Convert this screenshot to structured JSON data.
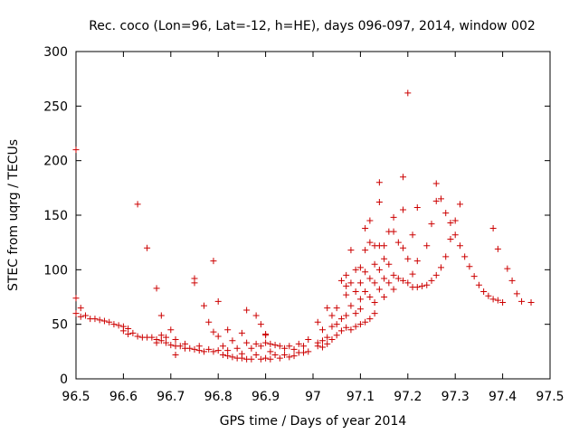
{
  "chart_data": {
    "type": "scatter",
    "title": "Rec. coco (Lon=96, Lat=-12, h=HE), days 096-097, 2014, window 002",
    "xlabel": "GPS time / Days of year 2014",
    "ylabel": "STEC from uqrg / TECUs",
    "xlim": [
      96.5,
      97.5
    ],
    "ylim": [
      0,
      300
    ],
    "xticks": [
      96.5,
      96.6,
      96.7,
      96.8,
      96.9,
      97,
      97.1,
      97.2,
      97.3,
      97.4,
      97.5
    ],
    "yticks": [
      0,
      50,
      100,
      150,
      200,
      250,
      300
    ],
    "xtick_labels": [
      "96.5",
      "96.6",
      "96.7",
      "96.8",
      "96.9",
      "97",
      "97.1",
      "97.2",
      "97.3",
      "97.4",
      "97.5"
    ],
    "ytick_labels": [
      "0",
      "50",
      "100",
      "150",
      "200",
      "250",
      "300"
    ],
    "grid": false,
    "marker": "+",
    "series": [
      {
        "color": "#cc0000",
        "points": [
          [
            96.5,
            210
          ],
          [
            96.5,
            74
          ],
          [
            96.5,
            60
          ],
          [
            96.51,
            65
          ],
          [
            96.51,
            57
          ],
          [
            96.52,
            58
          ],
          [
            96.53,
            55
          ],
          [
            96.54,
            55
          ],
          [
            96.55,
            54
          ],
          [
            96.56,
            53
          ],
          [
            96.57,
            52
          ],
          [
            96.58,
            50
          ],
          [
            96.59,
            49
          ],
          [
            96.6,
            48
          ],
          [
            96.6,
            44
          ],
          [
            96.61,
            46
          ],
          [
            96.61,
            41
          ],
          [
            96.62,
            42
          ],
          [
            96.63,
            160
          ],
          [
            96.63,
            39
          ],
          [
            96.64,
            38
          ],
          [
            96.65,
            120
          ],
          [
            96.65,
            38
          ],
          [
            96.66,
            38
          ],
          [
            96.67,
            83
          ],
          [
            96.67,
            36
          ],
          [
            96.67,
            33
          ],
          [
            96.68,
            58
          ],
          [
            96.68,
            40
          ],
          [
            96.68,
            35
          ],
          [
            96.69,
            38
          ],
          [
            96.69,
            33
          ],
          [
            96.7,
            45
          ],
          [
            96.7,
            31
          ],
          [
            96.71,
            36
          ],
          [
            96.71,
            30
          ],
          [
            96.71,
            22
          ],
          [
            96.72,
            30
          ],
          [
            96.73,
            32
          ],
          [
            96.73,
            28
          ],
          [
            96.74,
            28
          ],
          [
            96.75,
            92
          ],
          [
            96.75,
            88
          ],
          [
            96.75,
            27
          ],
          [
            96.76,
            26
          ],
          [
            96.76,
            30
          ],
          [
            96.77,
            67
          ],
          [
            96.77,
            25
          ],
          [
            96.78,
            52
          ],
          [
            96.78,
            27
          ],
          [
            96.79,
            108
          ],
          [
            96.79,
            43
          ],
          [
            96.79,
            25
          ],
          [
            96.8,
            71
          ],
          [
            96.8,
            39
          ],
          [
            96.8,
            26
          ],
          [
            96.81,
            30
          ],
          [
            96.81,
            22
          ],
          [
            96.82,
            45
          ],
          [
            96.82,
            26
          ],
          [
            96.82,
            21
          ],
          [
            96.83,
            35
          ],
          [
            96.83,
            20
          ],
          [
            96.84,
            28
          ],
          [
            96.84,
            19
          ],
          [
            96.85,
            42
          ],
          [
            96.85,
            23
          ],
          [
            96.85,
            19
          ],
          [
            96.86,
            63
          ],
          [
            96.86,
            33
          ],
          [
            96.86,
            18
          ],
          [
            96.87,
            28
          ],
          [
            96.87,
            18
          ],
          [
            96.88,
            58
          ],
          [
            96.88,
            32
          ],
          [
            96.88,
            22
          ],
          [
            96.89,
            50
          ],
          [
            96.89,
            30
          ],
          [
            96.89,
            18
          ],
          [
            96.9,
            41
          ],
          [
            96.9,
            40
          ],
          [
            96.9,
            33
          ],
          [
            96.9,
            19
          ],
          [
            96.91,
            32
          ],
          [
            96.91,
            25
          ],
          [
            96.91,
            18
          ],
          [
            96.92,
            31
          ],
          [
            96.92,
            22
          ],
          [
            96.93,
            30
          ],
          [
            96.93,
            19
          ],
          [
            96.94,
            28
          ],
          [
            96.94,
            22
          ],
          [
            96.95,
            30
          ],
          [
            96.95,
            20
          ],
          [
            96.96,
            27
          ],
          [
            96.96,
            21
          ],
          [
            96.97,
            32
          ],
          [
            96.97,
            24
          ],
          [
            96.98,
            30
          ],
          [
            96.98,
            24
          ],
          [
            96.99,
            36
          ],
          [
            96.99,
            25
          ],
          [
            97.01,
            52
          ],
          [
            97.01,
            33
          ],
          [
            97.01,
            30
          ],
          [
            97.02,
            45
          ],
          [
            97.02,
            35
          ],
          [
            97.02,
            29
          ],
          [
            97.03,
            65
          ],
          [
            97.03,
            38
          ],
          [
            97.03,
            32
          ],
          [
            97.04,
            58
          ],
          [
            97.04,
            48
          ],
          [
            97.04,
            36
          ],
          [
            97.05,
            65
          ],
          [
            97.05,
            50
          ],
          [
            97.05,
            40
          ],
          [
            97.06,
            90
          ],
          [
            97.06,
            55
          ],
          [
            97.06,
            44
          ],
          [
            97.07,
            95
          ],
          [
            97.07,
            85
          ],
          [
            97.07,
            77
          ],
          [
            97.07,
            58
          ],
          [
            97.07,
            47
          ],
          [
            97.08,
            118
          ],
          [
            97.08,
            88
          ],
          [
            97.08,
            67
          ],
          [
            97.08,
            45
          ],
          [
            97.09,
            100
          ],
          [
            97.09,
            80
          ],
          [
            97.09,
            60
          ],
          [
            97.09,
            48
          ],
          [
            97.1,
            102
          ],
          [
            97.1,
            88
          ],
          [
            97.1,
            73
          ],
          [
            97.1,
            64
          ],
          [
            97.1,
            50
          ],
          [
            97.11,
            138
          ],
          [
            97.11,
            118
          ],
          [
            97.11,
            98
          ],
          [
            97.11,
            80
          ],
          [
            97.11,
            52
          ],
          [
            97.12,
            145
          ],
          [
            97.12,
            125
          ],
          [
            97.12,
            92
          ],
          [
            97.12,
            75
          ],
          [
            97.12,
            55
          ],
          [
            97.13,
            122
          ],
          [
            97.13,
            105
          ],
          [
            97.13,
            88
          ],
          [
            97.13,
            70
          ],
          [
            97.13,
            60
          ],
          [
            97.14,
            180
          ],
          [
            97.14,
            162
          ],
          [
            97.14,
            122
          ],
          [
            97.14,
            100
          ],
          [
            97.14,
            82
          ],
          [
            97.15,
            122
          ],
          [
            97.15,
            110
          ],
          [
            97.15,
            92
          ],
          [
            97.15,
            75
          ],
          [
            97.16,
            135
          ],
          [
            97.16,
            105
          ],
          [
            97.16,
            88
          ],
          [
            97.17,
            148
          ],
          [
            97.17,
            135
          ],
          [
            97.17,
            95
          ],
          [
            97.17,
            82
          ],
          [
            97.18,
            125
          ],
          [
            97.18,
            92
          ],
          [
            97.19,
            185
          ],
          [
            97.19,
            155
          ],
          [
            97.19,
            120
          ],
          [
            97.19,
            90
          ],
          [
            97.2,
            262
          ],
          [
            97.2,
            110
          ],
          [
            97.2,
            88
          ],
          [
            97.21,
            132
          ],
          [
            97.21,
            96
          ],
          [
            97.21,
            84
          ],
          [
            97.22,
            157
          ],
          [
            97.22,
            108
          ],
          [
            97.22,
            84
          ],
          [
            97.23,
            85
          ],
          [
            97.24,
            122
          ],
          [
            97.24,
            86
          ],
          [
            97.25,
            142
          ],
          [
            97.25,
            90
          ],
          [
            97.26,
            179
          ],
          [
            97.26,
            163
          ],
          [
            97.26,
            95
          ],
          [
            97.27,
            165
          ],
          [
            97.27,
            102
          ],
          [
            97.28,
            152
          ],
          [
            97.28,
            112
          ],
          [
            97.29,
            143
          ],
          [
            97.29,
            128
          ],
          [
            97.3,
            145
          ],
          [
            97.3,
            132
          ],
          [
            97.31,
            160
          ],
          [
            97.31,
            122
          ],
          [
            97.32,
            112
          ],
          [
            97.33,
            103
          ],
          [
            97.34,
            94
          ],
          [
            97.35,
            86
          ],
          [
            97.36,
            80
          ],
          [
            97.37,
            76
          ],
          [
            97.38,
            138
          ],
          [
            97.38,
            73
          ],
          [
            97.39,
            119
          ],
          [
            97.39,
            72
          ],
          [
            97.4,
            70
          ],
          [
            97.41,
            101
          ],
          [
            97.42,
            90
          ],
          [
            97.43,
            78
          ],
          [
            97.44,
            71
          ],
          [
            97.46,
            70
          ]
        ]
      }
    ]
  }
}
